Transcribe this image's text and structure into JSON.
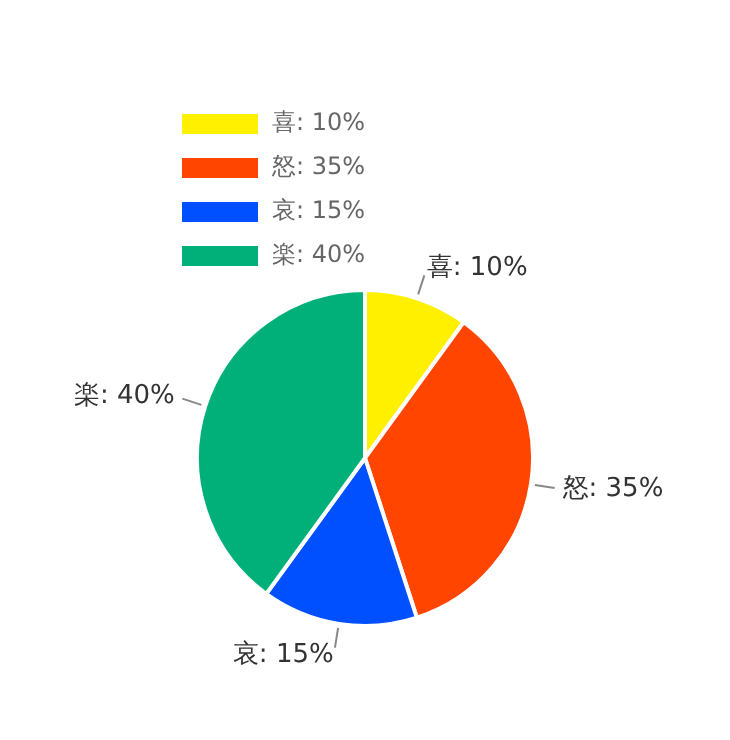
{
  "chart_data": {
    "type": "pie",
    "categories": [
      "喜",
      "怒",
      "哀",
      "楽"
    ],
    "values": [
      10,
      35,
      15,
      40
    ],
    "value_labels": [
      "10%",
      "35%",
      "15%",
      "40%"
    ],
    "colors": [
      "#fff000",
      "#ff4500",
      "#0050ff",
      "#00b078"
    ],
    "legend": "top left"
  }
}
